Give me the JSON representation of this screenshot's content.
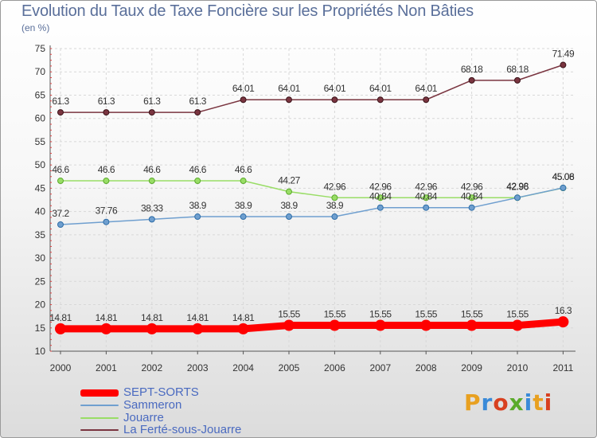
{
  "title": "Evolution du Taux de Taxe Foncière sur les Propriétés Non Bâties",
  "subtitle": "(en %)",
  "logo_text": "Proxiti",
  "chart_data": {
    "type": "line",
    "title": "Evolution du Taux de Taxe Foncière sur les Propriétés Non Bâties",
    "ylabel": "(en %)",
    "xlabel": "",
    "ylim": [
      10,
      75
    ],
    "yticks": [
      10,
      15,
      20,
      25,
      30,
      35,
      40,
      45,
      50,
      55,
      60,
      65,
      70,
      75
    ],
    "grid": true,
    "legend_position": "bottom-left",
    "x": [
      "2000",
      "2001",
      "2002",
      "2003",
      "2004",
      "2005",
      "2006",
      "2007",
      "2008",
      "2009",
      "2010",
      "2011"
    ],
    "series": [
      {
        "name": "SEPT-SORTS",
        "color": "#ff0000",
        "values": [
          14.81,
          14.81,
          14.81,
          14.81,
          14.81,
          15.55,
          15.55,
          15.55,
          15.55,
          15.55,
          15.55,
          16.3
        ],
        "labels": [
          "14.81",
          "14.81",
          "14.81",
          "14.81",
          "14.81",
          "15.55",
          "15.55",
          "15.55",
          "15.55",
          "15.55",
          "15.55",
          "16.3"
        ]
      },
      {
        "name": "Sammeron",
        "color": "#6f9fcf",
        "values": [
          37.2,
          37.76,
          38.33,
          38.9,
          38.9,
          38.9,
          38.9,
          40.84,
          40.84,
          40.84,
          42.98,
          45.08
        ],
        "labels": [
          "37.2",
          "37.76",
          "38.33",
          "38.9",
          "38.9",
          "38.9",
          "38.9",
          "40.84",
          "40.84",
          "40.84",
          "42.98",
          "45.08"
        ]
      },
      {
        "name": "Jouarre",
        "color": "#99dd66",
        "values": [
          46.6,
          46.6,
          46.6,
          46.6,
          46.6,
          44.27,
          42.96,
          42.96,
          42.96,
          42.96,
          42.96,
          45.06
        ],
        "labels": [
          "46.6",
          "46.6",
          "46.6",
          "46.6",
          "46.6",
          "44.27",
          "42.96",
          "42.96",
          "42.96",
          "42.96",
          "42.96",
          "45.06"
        ]
      },
      {
        "name": "La Ferté-sous-Jouarre",
        "color": "#7a3540",
        "values": [
          61.3,
          61.3,
          61.3,
          61.3,
          64.01,
          64.01,
          64.01,
          64.01,
          64.01,
          68.18,
          68.18,
          71.49
        ],
        "labels": [
          "61.3",
          "61.3",
          "61.3",
          "61.3",
          "64.01",
          "64.01",
          "64.01",
          "64.01",
          "64.01",
          "68.18",
          "68.18",
          "71.49"
        ]
      }
    ]
  }
}
